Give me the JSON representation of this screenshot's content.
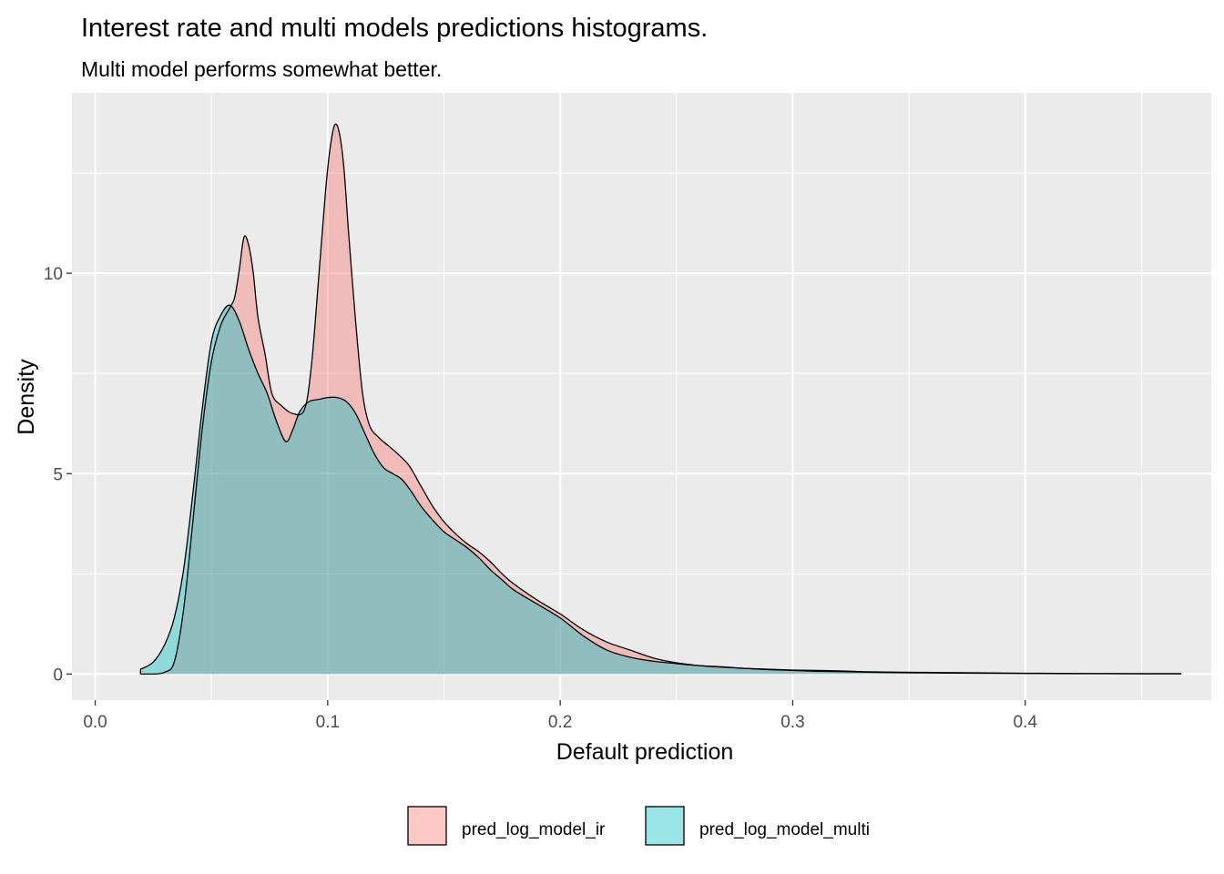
{
  "chart_data": {
    "type": "area",
    "title": "Interest rate and multi models predictions histograms.",
    "subtitle": "Multi model performs somewhat better.",
    "xlabel": "Default prediction",
    "ylabel": "Density",
    "xlim": [
      -0.01,
      0.48
    ],
    "ylim": [
      -0.65,
      14.5
    ],
    "x_ticks": [
      0.0,
      0.1,
      0.2,
      0.3,
      0.4
    ],
    "x_tick_labels": [
      "0.0",
      "0.1",
      "0.2",
      "0.3",
      "0.4"
    ],
    "y_ticks": [
      0,
      5,
      10
    ],
    "y_tick_labels": [
      "0",
      "5",
      "10"
    ],
    "grid": true,
    "legend_position": "bottom",
    "series": [
      {
        "name": "pred_log_model_ir",
        "color": "#F8766D",
        "x": [
          0.0195,
          0.025,
          0.03,
          0.034,
          0.038,
          0.042,
          0.046,
          0.05,
          0.054,
          0.058,
          0.06,
          0.062,
          0.064,
          0.066,
          0.068,
          0.07,
          0.073,
          0.076,
          0.08,
          0.085,
          0.09,
          0.093,
          0.096,
          0.099,
          0.101,
          0.103,
          0.105,
          0.107,
          0.109,
          0.112,
          0.115,
          0.118,
          0.122,
          0.126,
          0.13,
          0.135,
          0.14,
          0.145,
          0.15,
          0.155,
          0.16,
          0.165,
          0.17,
          0.175,
          0.18,
          0.19,
          0.2,
          0.21,
          0.22,
          0.23,
          0.24,
          0.25,
          0.26,
          0.27,
          0.28,
          0.29,
          0.3,
          0.31,
          0.32,
          0.33,
          0.34,
          0.36,
          0.38,
          0.4,
          0.42,
          0.44,
          0.467
        ],
        "values": [
          0.0,
          0.0,
          0.05,
          0.3,
          1.6,
          3.8,
          6.1,
          7.8,
          8.7,
          9.15,
          9.4,
          10.1,
          10.9,
          10.7,
          10.0,
          8.9,
          8.0,
          7.0,
          6.7,
          6.5,
          6.6,
          7.7,
          9.8,
          12.0,
          13.1,
          13.7,
          13.5,
          12.6,
          11.0,
          8.8,
          7.0,
          6.2,
          5.9,
          5.7,
          5.5,
          5.2,
          4.7,
          4.2,
          3.8,
          3.5,
          3.25,
          3.05,
          2.8,
          2.5,
          2.25,
          1.85,
          1.5,
          1.1,
          0.8,
          0.6,
          0.4,
          0.28,
          0.21,
          0.17,
          0.14,
          0.12,
          0.1,
          0.09,
          0.08,
          0.06,
          0.05,
          0.04,
          0.03,
          0.02,
          0.015,
          0.01,
          0.01
        ]
      },
      {
        "name": "pred_log_model_multi",
        "color": "#00BFC4",
        "x": [
          0.0195,
          0.025,
          0.03,
          0.034,
          0.038,
          0.042,
          0.046,
          0.05,
          0.054,
          0.058,
          0.062,
          0.066,
          0.07,
          0.074,
          0.078,
          0.082,
          0.085,
          0.088,
          0.092,
          0.096,
          0.1,
          0.104,
          0.108,
          0.112,
          0.116,
          0.12,
          0.124,
          0.128,
          0.132,
          0.136,
          0.14,
          0.145,
          0.15,
          0.155,
          0.16,
          0.165,
          0.17,
          0.175,
          0.18,
          0.19,
          0.2,
          0.21,
          0.22,
          0.23,
          0.24,
          0.25,
          0.26,
          0.27,
          0.28,
          0.29,
          0.3,
          0.31,
          0.32,
          0.33,
          0.34,
          0.36,
          0.38,
          0.4,
          0.42,
          0.44,
          0.467
        ],
        "values": [
          0.12,
          0.3,
          0.75,
          1.4,
          2.6,
          4.5,
          6.6,
          8.3,
          8.95,
          9.2,
          8.8,
          8.1,
          7.5,
          7.0,
          6.3,
          5.8,
          6.1,
          6.55,
          6.8,
          6.85,
          6.9,
          6.9,
          6.8,
          6.5,
          6.0,
          5.5,
          5.15,
          5.0,
          4.85,
          4.55,
          4.2,
          3.85,
          3.55,
          3.35,
          3.15,
          2.9,
          2.6,
          2.35,
          2.1,
          1.75,
          1.4,
          0.95,
          0.6,
          0.42,
          0.32,
          0.26,
          0.21,
          0.18,
          0.14,
          0.11,
          0.09,
          0.07,
          0.06,
          0.05,
          0.04,
          0.03,
          0.02,
          0.015,
          0.01,
          0.008,
          0.005
        ]
      }
    ]
  }
}
